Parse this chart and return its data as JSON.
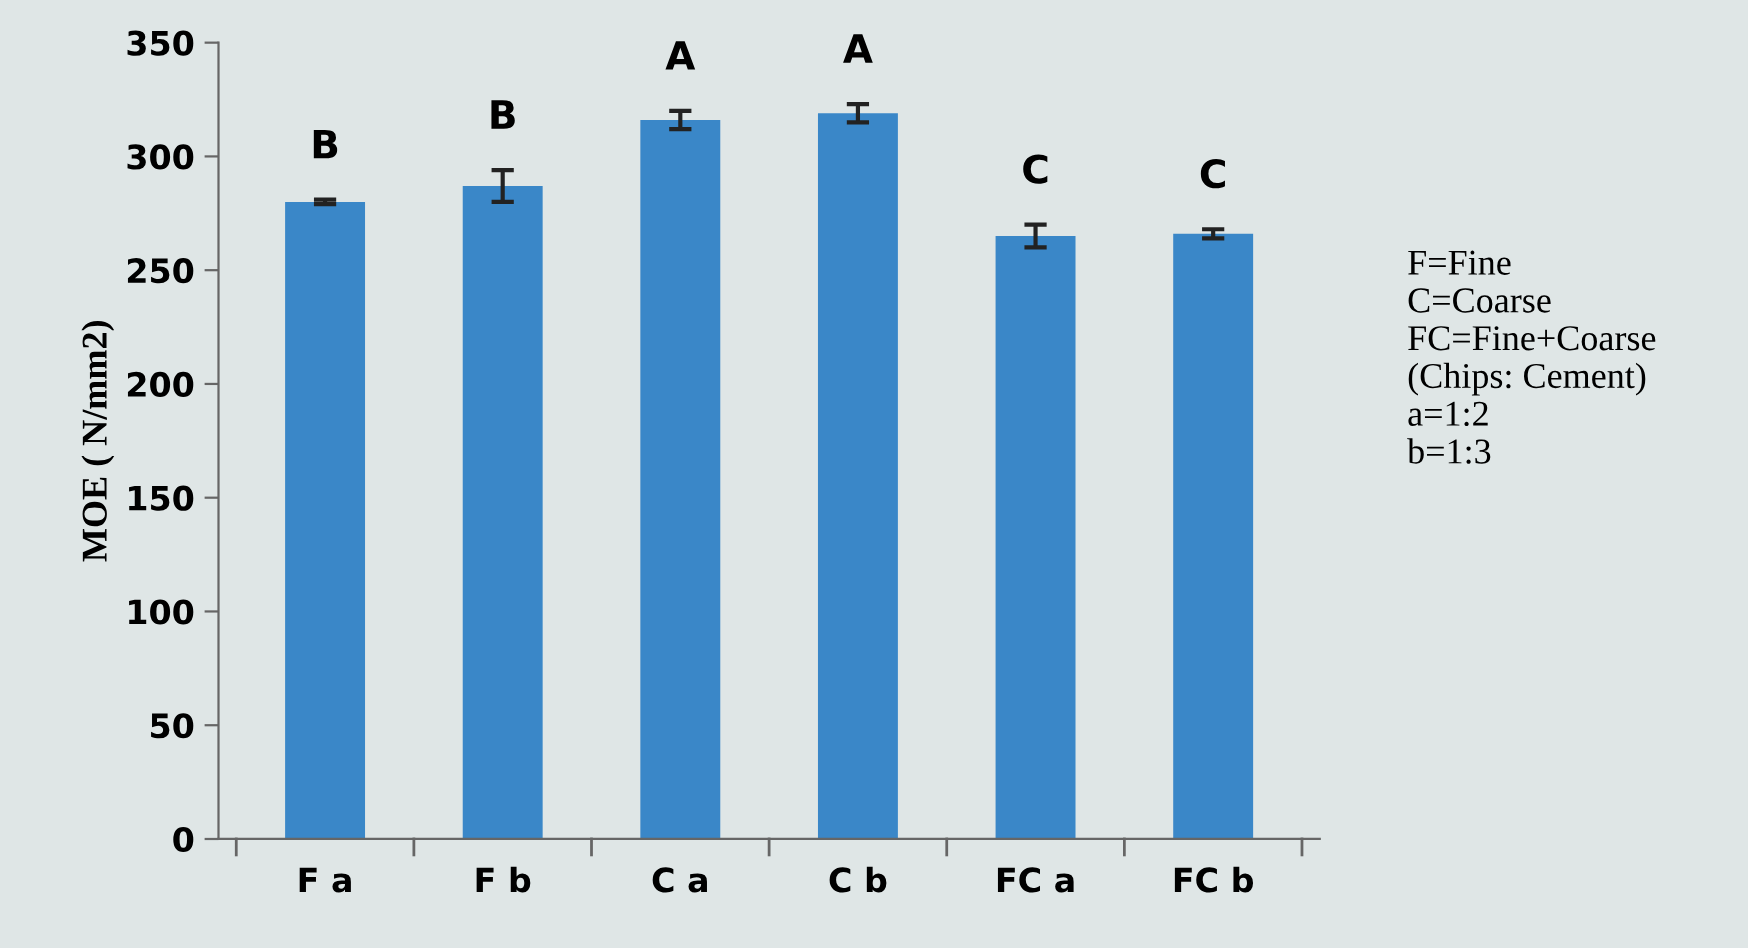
{
  "chart_data": {
    "type": "bar",
    "ylabel": "MOE ( N/mm2)",
    "categories": [
      "F a",
      "F b",
      "C a",
      "C b",
      "FC a",
      "FC b"
    ],
    "values": [
      280,
      287,
      316,
      319,
      265,
      266
    ],
    "errors": [
      1,
      7,
      4,
      4,
      5,
      2
    ],
    "color": "#3a87c8",
    "ylim": [
      0,
      350
    ],
    "yticks": [
      0,
      50,
      100,
      150,
      200,
      250,
      300,
      350
    ],
    "grid": false,
    "legend": false,
    "value_labels": [
      "B",
      "B",
      "A",
      "A",
      "C",
      "C"
    ],
    "annotations": [
      "F=Fine\nC=Coarse\nFC=Fine+Coarse\n(Chips: Cement)\na=1:2\nb=1:3"
    ]
  }
}
